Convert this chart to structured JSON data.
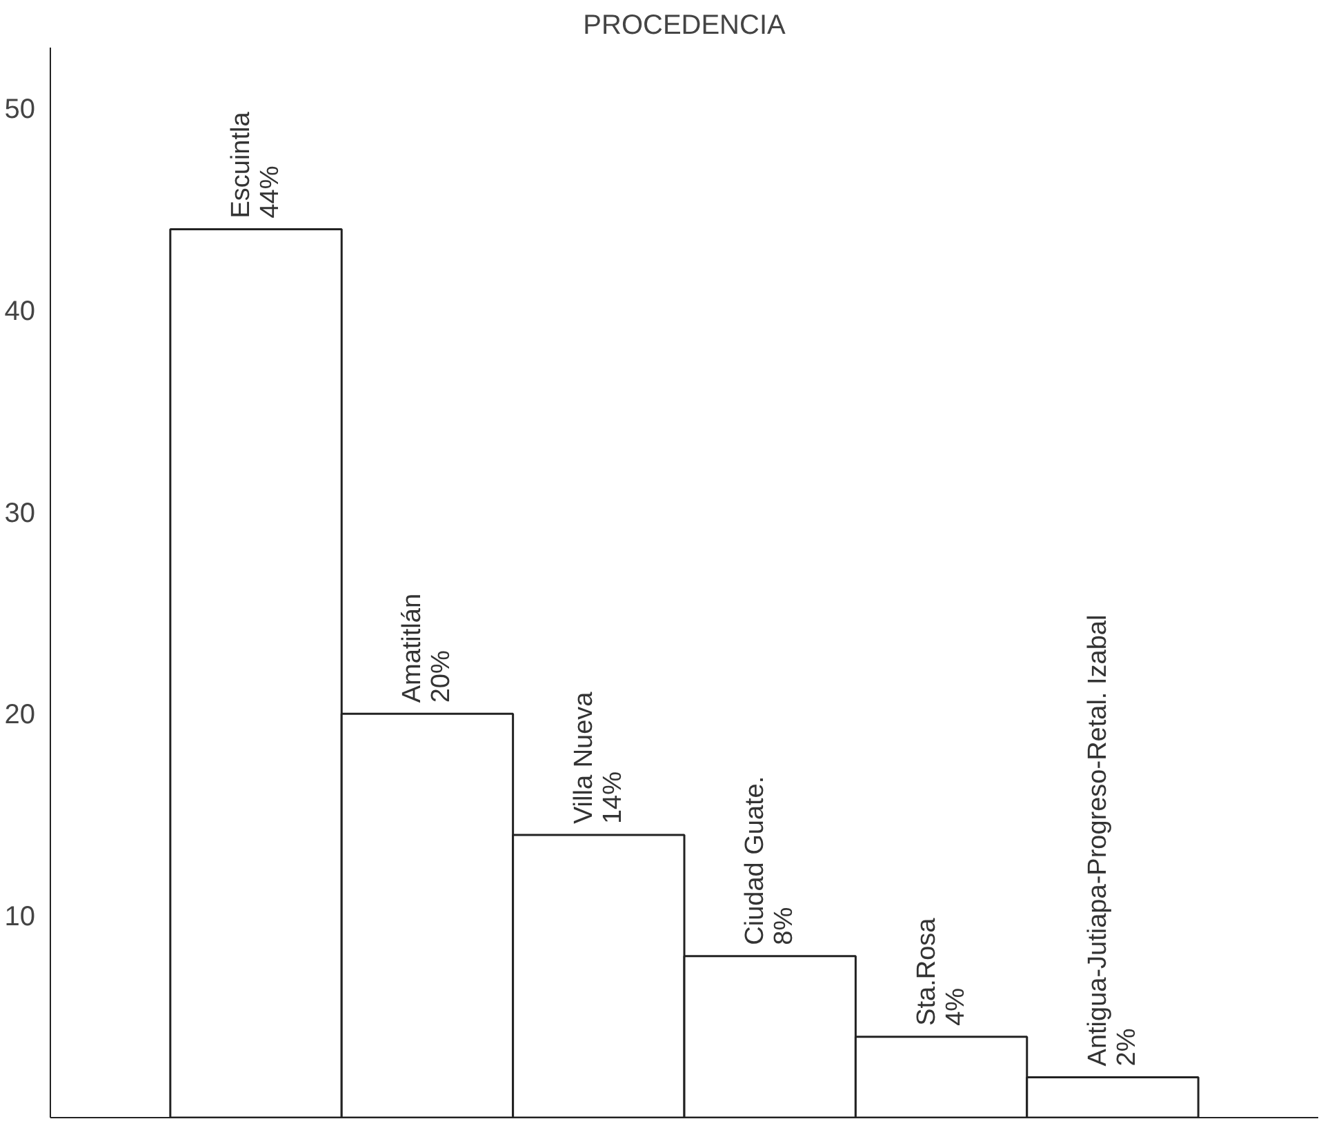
{
  "chart_data": {
    "type": "bar",
    "title": "PROCEDENCIA",
    "categories": [
      "Escuintla",
      "Amatitlán",
      "Villa Nueva",
      "Ciudad Guate.",
      "Sta.Rosa",
      "Antigua-Jutiapa-Progreso-Retal. Izabal"
    ],
    "values": [
      44,
      20,
      14,
      8,
      4,
      2
    ],
    "value_labels": [
      "44%",
      "20%",
      "14%",
      "8%",
      "4%",
      "2%"
    ],
    "color": "#ffffff",
    "ylim": [
      0,
      53
    ],
    "yticks": [
      10,
      20,
      30,
      40,
      50
    ],
    "grid": false
  }
}
